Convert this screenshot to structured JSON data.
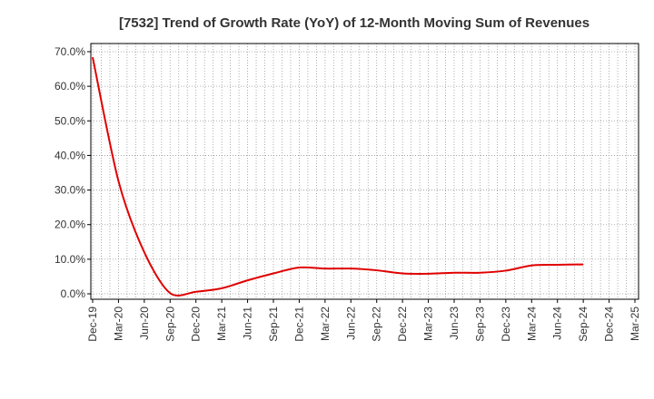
{
  "chart_data": {
    "type": "line",
    "title": "[7532]  Trend of Growth Rate (YoY) of 12-Month Moving Sum of Revenues",
    "xlabel": "",
    "ylabel": "",
    "ylim": [
      0,
      70
    ],
    "y_ticks": [
      "0.0%",
      "10.0%",
      "20.0%",
      "30.0%",
      "40.0%",
      "50.0%",
      "60.0%",
      "70.0%"
    ],
    "x_ticks": [
      "Dec-19",
      "Mar-20",
      "Jun-20",
      "Sep-20",
      "Dec-20",
      "Mar-21",
      "Jun-21",
      "Sep-21",
      "Dec-21",
      "Mar-22",
      "Jun-22",
      "Sep-22",
      "Dec-22",
      "Mar-23",
      "Jun-23",
      "Sep-23",
      "Dec-23",
      "Mar-24",
      "Jun-24",
      "Sep-24",
      "Dec-24",
      "Mar-25"
    ],
    "x_range": [
      "Dec-19",
      "Mar-25"
    ],
    "grid": true,
    "legend": "none",
    "colors": {
      "series": "#e00000",
      "grid": "#999999",
      "axis": "#000000"
    },
    "series": [
      {
        "x": [
          "Dec-19",
          "Mar-20",
          "Jun-20",
          "Sep-20",
          "Dec-20",
          "Mar-21",
          "Jun-21",
          "Sep-21",
          "Dec-21",
          "Mar-22",
          "Jun-22",
          "Sep-22",
          "Dec-22",
          "Mar-23",
          "Jun-23",
          "Sep-23",
          "Dec-23",
          "Mar-24",
          "Jun-24",
          "Sep-24",
          "Dec-24"
        ],
        "values": [
          68.4,
          32.6,
          12.0,
          0.2,
          0.6,
          1.6,
          3.9,
          5.9,
          7.6,
          7.3,
          7.3,
          6.8,
          5.9,
          5.8,
          6.1,
          6.1,
          6.7,
          8.2,
          8.4,
          8.5,
          null
        ]
      }
    ]
  }
}
